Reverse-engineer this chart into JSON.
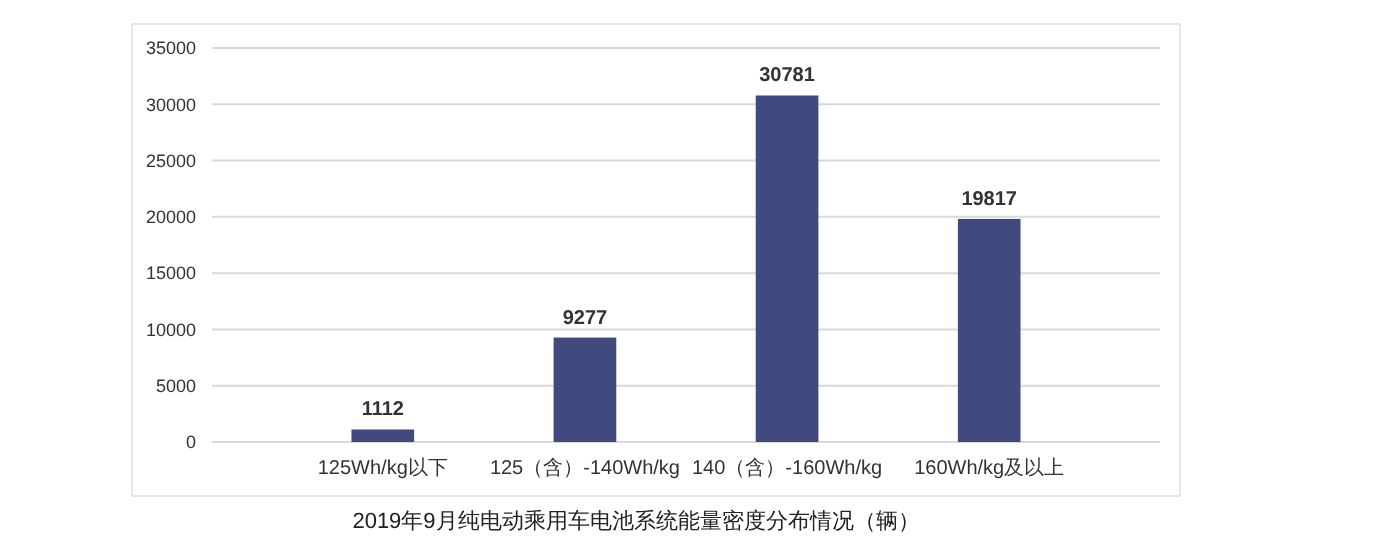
{
  "chart_data": {
    "type": "bar",
    "title": "2019年9月纯电动乘用车电池系统能量密度分布情况（辆）",
    "categories": [
      "125Wh/kg以下",
      "125（含）-140Wh/kg",
      "140（含）-160Wh/kg",
      "160Wh/kg及以上"
    ],
    "values": [
      1112,
      9277,
      30781,
      19817
    ],
    "color": "#414a7e",
    "ylim": [
      0,
      35000
    ],
    "yticks": [
      0,
      5000,
      10000,
      15000,
      20000,
      25000,
      30000,
      35000
    ],
    "grid": "y",
    "data_labels": true
  }
}
